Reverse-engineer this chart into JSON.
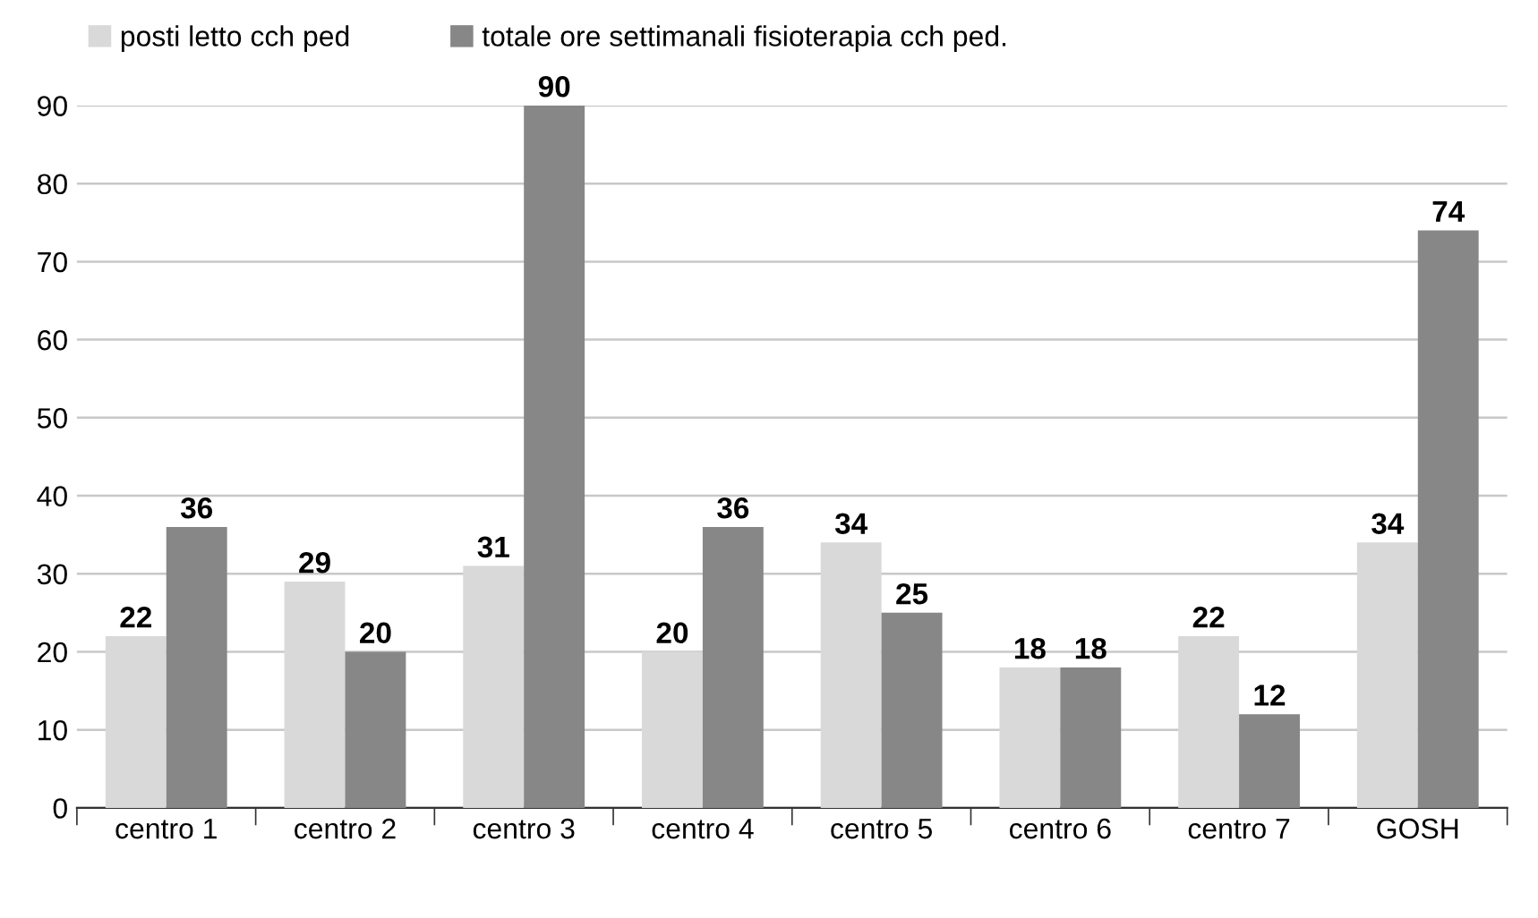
{
  "chart_data": {
    "type": "bar",
    "categories": [
      "centro 1",
      "centro 2",
      "centro 3",
      "centro 4",
      "centro 5",
      "centro 6",
      "centro 7",
      "GOSH"
    ],
    "series": [
      {
        "name": "posti letto cch ped",
        "color": "#d9d9d9",
        "values": [
          22,
          29,
          31,
          20,
          34,
          18,
          22,
          34
        ]
      },
      {
        "name": "totale ore settimanali fisioterapia cch ped.",
        "color": "#878787",
        "values": [
          36,
          20,
          90,
          36,
          25,
          18,
          12,
          74
        ]
      }
    ],
    "ylim": [
      0,
      90
    ],
    "yticks": [
      0,
      10,
      20,
      30,
      40,
      50,
      60,
      70,
      80,
      90
    ],
    "grid": "y",
    "legend": "top left",
    "data_labels": true
  }
}
